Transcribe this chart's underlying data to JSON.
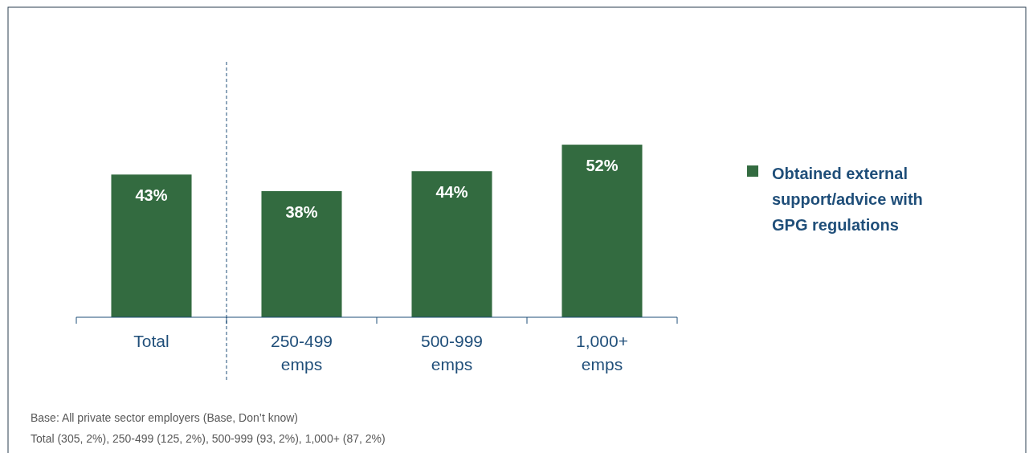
{
  "chart_data": {
    "type": "bar",
    "categories": [
      "Total",
      "250-499 emps",
      "500-999 emps",
      "1,000+ emps"
    ],
    "series": [
      {
        "name": "Obtained external support/advice with GPG regulations",
        "color": "#336b40",
        "values": [
          43,
          38,
          44,
          52
        ],
        "value_labels": [
          "43%",
          "38%",
          "44%",
          "52%"
        ]
      }
    ],
    "legend": "right",
    "grid": false,
    "annotations": [
      "Base: All private sector employers (Base, Don’t know)",
      "Total (305, 2%), 250-499 (125, 2%), 500-999 (93, 2%), 1,000+ (87, 2%)"
    ]
  }
}
